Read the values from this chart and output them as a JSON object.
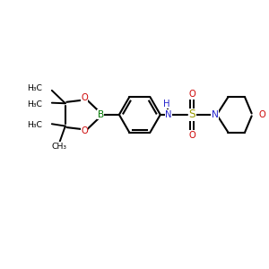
{
  "bg_color": "#ffffff",
  "bond_color": "#000000",
  "atom_colors": {
    "B": "#007700",
    "O": "#cc0000",
    "N": "#2222cc",
    "S": "#999900",
    "C": "#000000"
  },
  "font_size": 7.2,
  "figsize": [
    3.0,
    3.0
  ],
  "dpi": 100,
  "xlim": [
    0,
    10
  ],
  "ylim": [
    0,
    10
  ]
}
